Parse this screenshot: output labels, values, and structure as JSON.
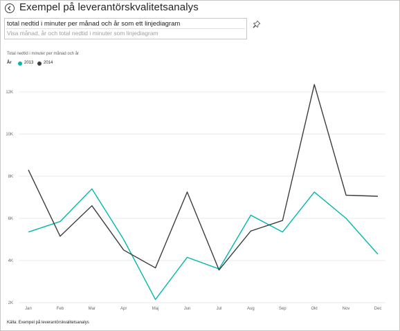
{
  "header": {
    "title": "Exempel på leverantörskvalitetsanalys"
  },
  "qa": {
    "query": "total nedtid i minuter per månad och år som ett linjediagram",
    "hint": "Visa månad, år och total nedtid i minuter som linjediagram"
  },
  "icons": {
    "back": "back-arrow-icon",
    "pin": "pin-icon"
  },
  "footer": {
    "source": "Källa: Exempel på leverantörskvalitetsanalys"
  },
  "colors": {
    "series_2013": "#01B8AA",
    "series_2014": "#3a3d40",
    "gridline": "#e9e9e9",
    "axis_text": "#666666"
  },
  "chart_data": {
    "type": "line",
    "title": "Total nedtid i minuter per månad och år",
    "legend_title": "År",
    "legend_position": "top-left",
    "categories": [
      "Jan",
      "Feb",
      "Mar",
      "Apr",
      "Maj",
      "Jun",
      "Jul",
      "Aug",
      "Sep",
      "Okt",
      "Nov",
      "Dec"
    ],
    "series": [
      {
        "name": "2013",
        "values": [
          5350,
          5850,
          7400,
          5000,
          2150,
          4150,
          3600,
          6150,
          5350,
          7250,
          6000,
          4300
        ]
      },
      {
        "name": "2014",
        "values": [
          8300,
          5150,
          6600,
          4500,
          3650,
          7250,
          3550,
          5400,
          5900,
          12350,
          7100,
          7050
        ]
      }
    ],
    "y_ticks": [
      "2K",
      "4K",
      "6K",
      "8K",
      "10K",
      "12K"
    ],
    "ylim": [
      2000,
      13000
    ],
    "grid": true
  }
}
